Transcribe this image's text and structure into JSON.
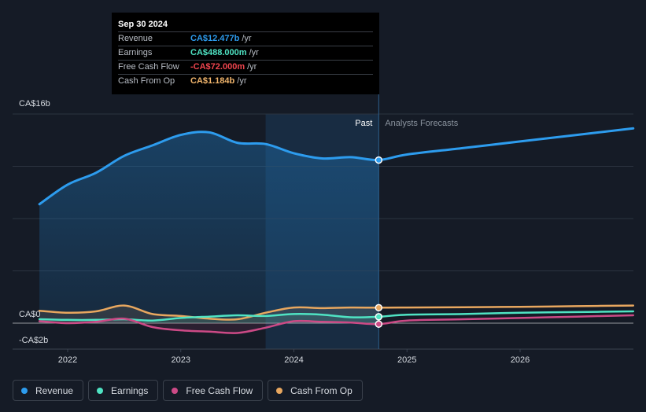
{
  "tooltip": {
    "date": "Sep 30 2024",
    "rows": [
      {
        "label": "Revenue",
        "value": "CA$12.477b",
        "unit": "/yr",
        "color": "#2d9cee"
      },
      {
        "label": "Earnings",
        "value": "CA$488.000m",
        "unit": "/yr",
        "color": "#4fe3c3"
      },
      {
        "label": "Free Cash Flow",
        "value": "-CA$72.000m",
        "unit": "/yr",
        "color": "#f0454e"
      },
      {
        "label": "Cash From Op",
        "value": "CA$1.184b",
        "unit": "/yr",
        "color": "#f2b66d"
      }
    ]
  },
  "labels": {
    "past": "Past",
    "forecast": "Analysts Forecasts"
  },
  "legend": [
    {
      "label": "Revenue",
      "color": "#2d9cee"
    },
    {
      "label": "Earnings",
      "color": "#4fe3c3"
    },
    {
      "label": "Free Cash Flow",
      "color": "#cc4a86"
    },
    {
      "label": "Cash From Op",
      "color": "#e8a75f"
    }
  ],
  "chart_data": {
    "type": "line",
    "ylim": [
      -2,
      16
    ],
    "y_ticks": [
      {
        "value": 16,
        "label": "CA$16b"
      },
      {
        "value": 0,
        "label": "CA$0"
      },
      {
        "value": -2,
        "label": "-CA$2b"
      }
    ],
    "x_ticks": [
      {
        "value": 2022,
        "label": "2022"
      },
      {
        "value": 2023,
        "label": "2023"
      },
      {
        "value": 2024,
        "label": "2024"
      },
      {
        "value": 2025,
        "label": "2025"
      },
      {
        "value": 2026,
        "label": "2026"
      }
    ],
    "xlim": [
      2021.5,
      2027.0
    ],
    "past_end": 2024.75,
    "highlight_start": 2023.75,
    "series": [
      {
        "name": "Revenue",
        "color": "#2d9cee",
        "values": [
          [
            2021.75,
            9.1
          ],
          [
            2022.0,
            10.6
          ],
          [
            2022.25,
            11.5
          ],
          [
            2022.5,
            12.8
          ],
          [
            2022.75,
            13.6
          ],
          [
            2023.0,
            14.4
          ],
          [
            2023.25,
            14.6
          ],
          [
            2023.5,
            13.8
          ],
          [
            2023.75,
            13.7
          ],
          [
            2024.0,
            13.0
          ],
          [
            2024.25,
            12.6
          ],
          [
            2024.5,
            12.7
          ],
          [
            2024.75,
            12.477
          ],
          [
            2025.0,
            12.9
          ],
          [
            2025.5,
            13.4
          ],
          [
            2026.0,
            13.9
          ],
          [
            2026.5,
            14.4
          ],
          [
            2027.0,
            14.9
          ]
        ]
      },
      {
        "name": "Earnings",
        "color": "#4fe3c3",
        "values": [
          [
            2021.75,
            0.3
          ],
          [
            2022.0,
            0.25
          ],
          [
            2022.25,
            0.25
          ],
          [
            2022.5,
            0.3
          ],
          [
            2022.75,
            0.2
          ],
          [
            2023.0,
            0.4
          ],
          [
            2023.25,
            0.5
          ],
          [
            2023.5,
            0.6
          ],
          [
            2023.75,
            0.55
          ],
          [
            2024.0,
            0.7
          ],
          [
            2024.25,
            0.65
          ],
          [
            2024.5,
            0.45
          ],
          [
            2024.75,
            0.488
          ],
          [
            2025.0,
            0.65
          ],
          [
            2025.5,
            0.7
          ],
          [
            2026.0,
            0.8
          ],
          [
            2026.5,
            0.85
          ],
          [
            2027.0,
            0.9
          ]
        ]
      },
      {
        "name": "Free Cash Flow",
        "color": "#cc4a86",
        "values": [
          [
            2021.75,
            0.15
          ],
          [
            2022.0,
            0.0
          ],
          [
            2022.25,
            0.1
          ],
          [
            2022.5,
            0.35
          ],
          [
            2022.75,
            -0.3
          ],
          [
            2023.0,
            -0.55
          ],
          [
            2023.25,
            -0.65
          ],
          [
            2023.5,
            -0.75
          ],
          [
            2023.75,
            -0.35
          ],
          [
            2024.0,
            0.15
          ],
          [
            2024.25,
            0.1
          ],
          [
            2024.5,
            0.05
          ],
          [
            2024.75,
            -0.072
          ],
          [
            2025.0,
            0.2
          ],
          [
            2025.5,
            0.3
          ],
          [
            2026.0,
            0.4
          ],
          [
            2026.5,
            0.5
          ],
          [
            2027.0,
            0.6
          ]
        ]
      },
      {
        "name": "Cash From Op",
        "color": "#e8a75f",
        "values": [
          [
            2021.75,
            0.95
          ],
          [
            2022.0,
            0.8
          ],
          [
            2022.25,
            0.9
          ],
          [
            2022.5,
            1.35
          ],
          [
            2022.75,
            0.7
          ],
          [
            2023.0,
            0.55
          ],
          [
            2023.25,
            0.35
          ],
          [
            2023.5,
            0.3
          ],
          [
            2023.75,
            0.8
          ],
          [
            2024.0,
            1.2
          ],
          [
            2024.25,
            1.15
          ],
          [
            2024.5,
            1.2
          ],
          [
            2024.75,
            1.184
          ],
          [
            2025.0,
            1.2
          ],
          [
            2025.5,
            1.22
          ],
          [
            2026.0,
            1.25
          ],
          [
            2026.5,
            1.3
          ],
          [
            2027.0,
            1.35
          ]
        ]
      }
    ]
  }
}
